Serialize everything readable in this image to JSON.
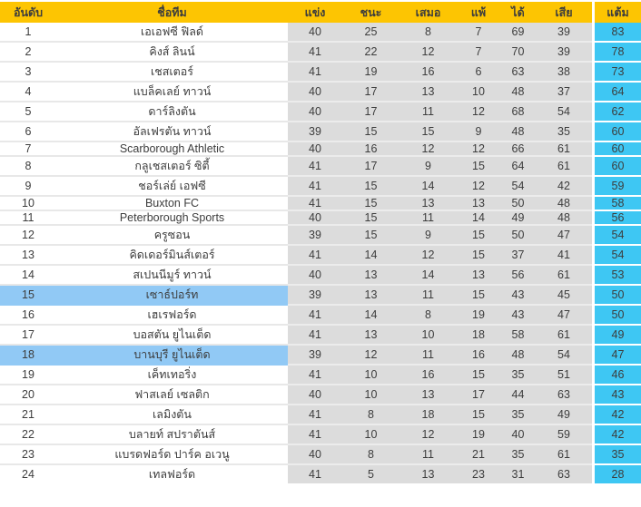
{
  "colors": {
    "header_bg": "#fdc502",
    "header_text": "#3f3516",
    "stat_cell_bg": "#dcdcdc",
    "points_cell_bg": "#3ec7f3",
    "highlight_row_bg": "#91c9f5",
    "row_text": "#3d3d3d",
    "divider_white_cells": "#e8e8e8",
    "divider_gray_cells": "#ececec"
  },
  "table": {
    "columns": [
      {
        "key": "rank",
        "label": "อันดับ"
      },
      {
        "key": "name",
        "label": "ชื่อทีม"
      },
      {
        "key": "played",
        "label": "แข่ง"
      },
      {
        "key": "won",
        "label": "ชนะ"
      },
      {
        "key": "drawn",
        "label": "เสมอ"
      },
      {
        "key": "lost",
        "label": "แพ้"
      },
      {
        "key": "goals_for",
        "label": "ได้"
      },
      {
        "key": "goals_against",
        "label": "เสีย"
      },
      {
        "key": "points",
        "label": "แต้ม"
      }
    ],
    "rows": [
      {
        "rank": 1,
        "name": "เอเอฟซี ฟิลด์",
        "played": 40,
        "won": 25,
        "drawn": 8,
        "lost": 7,
        "goals_for": 69,
        "goals_against": 39,
        "points": 83,
        "highlighted": false
      },
      {
        "rank": 2,
        "name": "คิงส์ ลินน์",
        "played": 41,
        "won": 22,
        "drawn": 12,
        "lost": 7,
        "goals_for": 70,
        "goals_against": 39,
        "points": 78,
        "highlighted": false
      },
      {
        "rank": 3,
        "name": "เชสเตอร์",
        "played": 41,
        "won": 19,
        "drawn": 16,
        "lost": 6,
        "goals_for": 63,
        "goals_against": 38,
        "points": 73,
        "highlighted": false
      },
      {
        "rank": 4,
        "name": "แบล็คเลย์ ทาวน์",
        "played": 40,
        "won": 17,
        "drawn": 13,
        "lost": 10,
        "goals_for": 48,
        "goals_against": 37,
        "points": 64,
        "highlighted": false
      },
      {
        "rank": 5,
        "name": "ดาร์ลิงตัน",
        "played": 40,
        "won": 17,
        "drawn": 11,
        "lost": 12,
        "goals_for": 68,
        "goals_against": 54,
        "points": 62,
        "highlighted": false
      },
      {
        "rank": 6,
        "name": "อัลเฟรตัน ทาวน์",
        "played": 39,
        "won": 15,
        "drawn": 15,
        "lost": 9,
        "goals_for": 48,
        "goals_against": 35,
        "points": 60,
        "highlighted": false
      },
      {
        "rank": 7,
        "name": "Scarborough Athletic",
        "played": 40,
        "won": 16,
        "drawn": 12,
        "lost": 12,
        "goals_for": 66,
        "goals_against": 61,
        "points": 60,
        "highlighted": false
      },
      {
        "rank": 8,
        "name": "กลูเชสเตอร์ ซิตี้",
        "played": 41,
        "won": 17,
        "drawn": 9,
        "lost": 15,
        "goals_for": 64,
        "goals_against": 61,
        "points": 60,
        "highlighted": false
      },
      {
        "rank": 9,
        "name": "ชอร์เล่ย์ เอฟซี",
        "played": 41,
        "won": 15,
        "drawn": 14,
        "lost": 12,
        "goals_for": 54,
        "goals_against": 42,
        "points": 59,
        "highlighted": false
      },
      {
        "rank": 10,
        "name": "Buxton FC",
        "played": 41,
        "won": 15,
        "drawn": 13,
        "lost": 13,
        "goals_for": 50,
        "goals_against": 48,
        "points": 58,
        "highlighted": false
      },
      {
        "rank": 11,
        "name": "Peterborough Sports",
        "played": 40,
        "won": 15,
        "drawn": 11,
        "lost": 14,
        "goals_for": 49,
        "goals_against": 48,
        "points": 56,
        "highlighted": false
      },
      {
        "rank": 12,
        "name": "ครูซอน",
        "played": 39,
        "won": 15,
        "drawn": 9,
        "lost": 15,
        "goals_for": 50,
        "goals_against": 47,
        "points": 54,
        "highlighted": false
      },
      {
        "rank": 13,
        "name": "คิดเดอร์มินส์เตอร์",
        "played": 41,
        "won": 14,
        "drawn": 12,
        "lost": 15,
        "goals_for": 37,
        "goals_against": 41,
        "points": 54,
        "highlighted": false
      },
      {
        "rank": 14,
        "name": "สเปนนีมูร์ ทาวน์",
        "played": 40,
        "won": 13,
        "drawn": 14,
        "lost": 13,
        "goals_for": 56,
        "goals_against": 61,
        "points": 53,
        "highlighted": false
      },
      {
        "rank": 15,
        "name": "เซาธ์ปอร์ท",
        "played": 39,
        "won": 13,
        "drawn": 11,
        "lost": 15,
        "goals_for": 43,
        "goals_against": 45,
        "points": 50,
        "highlighted": true
      },
      {
        "rank": 16,
        "name": "เฮเรฟอร์ด",
        "played": 41,
        "won": 14,
        "drawn": 8,
        "lost": 19,
        "goals_for": 43,
        "goals_against": 47,
        "points": 50,
        "highlighted": false
      },
      {
        "rank": 17,
        "name": "บอสตัน ยูไนเต็ด",
        "played": 41,
        "won": 13,
        "drawn": 10,
        "lost": 18,
        "goals_for": 58,
        "goals_against": 61,
        "points": 49,
        "highlighted": false
      },
      {
        "rank": 18,
        "name": "บานบุรี ยูไนเต็ด",
        "played": 39,
        "won": 12,
        "drawn": 11,
        "lost": 16,
        "goals_for": 48,
        "goals_against": 54,
        "points": 47,
        "highlighted": true
      },
      {
        "rank": 19,
        "name": "เค็ทเทอริ่ง",
        "played": 41,
        "won": 10,
        "drawn": 16,
        "lost": 15,
        "goals_for": 35,
        "goals_against": 51,
        "points": 46,
        "highlighted": false
      },
      {
        "rank": 20,
        "name": "ฟาสเลย์ เซลติก",
        "played": 40,
        "won": 10,
        "drawn": 13,
        "lost": 17,
        "goals_for": 44,
        "goals_against": 63,
        "points": 43,
        "highlighted": false
      },
      {
        "rank": 21,
        "name": "เลมิงตัน",
        "played": 41,
        "won": 8,
        "drawn": 18,
        "lost": 15,
        "goals_for": 35,
        "goals_against": 49,
        "points": 42,
        "highlighted": false
      },
      {
        "rank": 22,
        "name": "บลายท์ สปราตันส์",
        "played": 41,
        "won": 10,
        "drawn": 12,
        "lost": 19,
        "goals_for": 40,
        "goals_against": 59,
        "points": 42,
        "highlighted": false
      },
      {
        "rank": 23,
        "name": "แบรดฟอร์ด ปาร์ค อเวนู",
        "played": 40,
        "won": 8,
        "drawn": 11,
        "lost": 21,
        "goals_for": 35,
        "goals_against": 61,
        "points": 35,
        "highlighted": false
      },
      {
        "rank": 24,
        "name": "เทลฟอร์ด",
        "played": 41,
        "won": 5,
        "drawn": 13,
        "lost": 23,
        "goals_for": 31,
        "goals_against": 63,
        "points": 28,
        "highlighted": false
      }
    ]
  }
}
